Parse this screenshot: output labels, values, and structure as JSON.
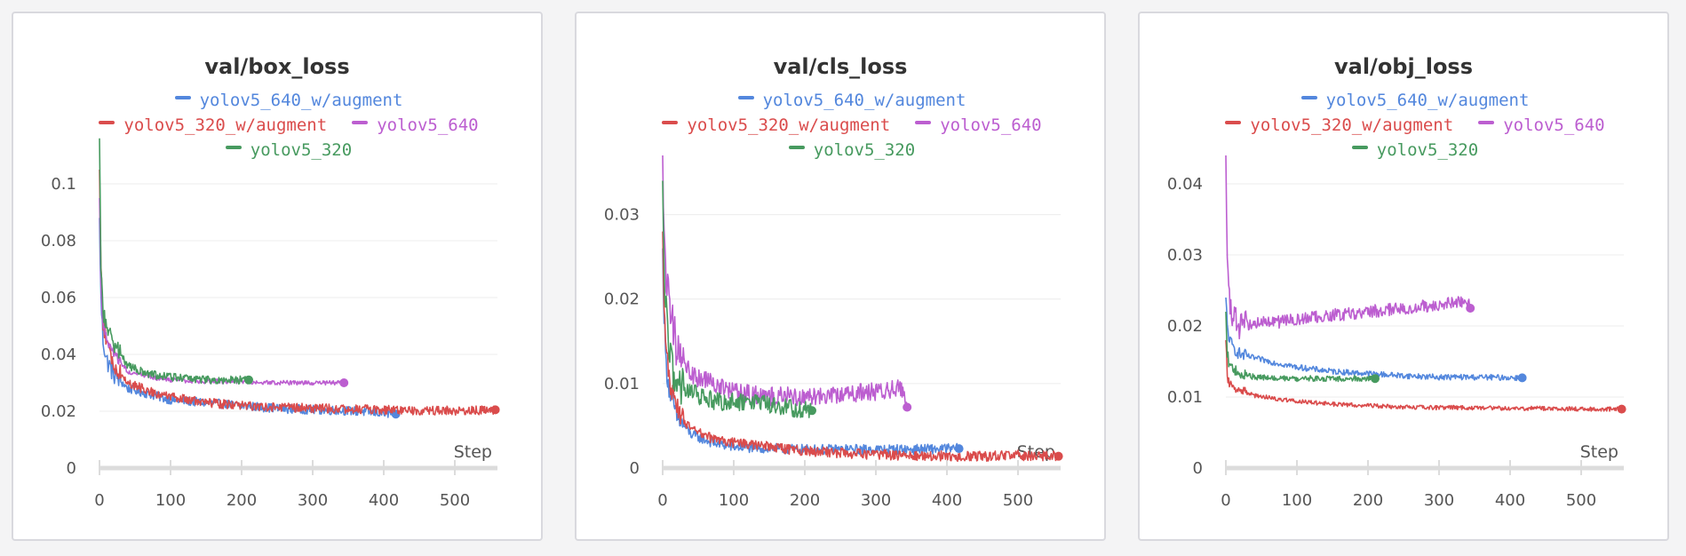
{
  "chart_data": [
    {
      "type": "line",
      "title": "val/box_loss",
      "xlabel": "Step",
      "ylabel": "",
      "xlim": [
        0,
        560
      ],
      "ylim": [
        0,
        0.11
      ],
      "x_ticks": [
        0,
        100,
        200,
        300,
        400,
        500
      ],
      "y_ticks": [
        0,
        0.02,
        0.04,
        0.06,
        0.08,
        0.1
      ],
      "x_tick_labels": [
        "0",
        "100",
        "200",
        "300",
        "400",
        "500"
      ],
      "y_tick_labels": [
        "0",
        "0.02",
        "0.04",
        "0.06",
        "0.08",
        "0.1"
      ],
      "grid": "horizontal",
      "legend": "top-center",
      "series": [
        {
          "name": "yolov5_640_w/augment",
          "color": "#5387dd",
          "noise": 0.0016,
          "x": [
            0,
            2,
            5,
            10,
            20,
            40,
            70,
            100,
            150,
            200,
            250,
            300,
            350,
            417
          ],
          "y": [
            0.088,
            0.06,
            0.045,
            0.038,
            0.033,
            0.028,
            0.026,
            0.024,
            0.023,
            0.022,
            0.021,
            0.0205,
            0.0202,
            0.019
          ]
        },
        {
          "name": "yolov5_320_w/augment",
          "color": "#da4c4c",
          "noise": 0.0016,
          "x": [
            0,
            2,
            5,
            10,
            20,
            40,
            70,
            100,
            150,
            200,
            250,
            300,
            350,
            400,
            450,
            500,
            557
          ],
          "y": [
            0.105,
            0.07,
            0.052,
            0.044,
            0.036,
            0.03,
            0.027,
            0.025,
            0.023,
            0.022,
            0.0215,
            0.021,
            0.0208,
            0.0205,
            0.0203,
            0.0202,
            0.0205
          ]
        },
        {
          "name": "yolov5_640",
          "color": "#bc5ed0",
          "noise": 0.0008,
          "x": [
            0,
            2,
            5,
            10,
            20,
            40,
            70,
            100,
            150,
            200,
            250,
            300,
            344
          ],
          "y": [
            0.095,
            0.065,
            0.05,
            0.045,
            0.04,
            0.034,
            0.032,
            0.031,
            0.0305,
            0.0305,
            0.03,
            0.03,
            0.03
          ]
        },
        {
          "name": "yolov5_320",
          "color": "#479a5f",
          "noise": 0.0014,
          "x": [
            0,
            2,
            5,
            10,
            20,
            40,
            70,
            100,
            150,
            210
          ],
          "y": [
            0.116,
            0.07,
            0.055,
            0.05,
            0.044,
            0.036,
            0.033,
            0.032,
            0.031,
            0.031
          ]
        }
      ]
    },
    {
      "type": "line",
      "title": "val/cls_loss",
      "xlabel": "Step",
      "ylabel": "",
      "xlim": [
        0,
        560
      ],
      "ylim": [
        0,
        0.037
      ],
      "x_ticks": [
        0,
        100,
        200,
        300,
        400,
        500
      ],
      "y_ticks": [
        0,
        0.01,
        0.02,
        0.03
      ],
      "x_tick_labels": [
        "0",
        "100",
        "200",
        "300",
        "400",
        "500"
      ],
      "y_tick_labels": [
        "0",
        "0.01",
        "0.02",
        "0.03"
      ],
      "grid": "horizontal",
      "legend": "top-center",
      "series": [
        {
          "name": "yolov5_640_w/augment",
          "color": "#5387dd",
          "noise": 0.0006,
          "x": [
            0,
            2,
            5,
            10,
            20,
            40,
            70,
            100,
            150,
            200,
            250,
            300,
            350,
            417
          ],
          "y": [
            0.026,
            0.018,
            0.012,
            0.009,
            0.006,
            0.004,
            0.003,
            0.0025,
            0.0023,
            0.0022,
            0.0022,
            0.0022,
            0.0022,
            0.0023
          ]
        },
        {
          "name": "yolov5_320_w/augment",
          "color": "#da4c4c",
          "noise": 0.0006,
          "x": [
            0,
            2,
            5,
            10,
            20,
            40,
            70,
            100,
            150,
            200,
            250,
            300,
            350,
            400,
            450,
            500,
            557
          ],
          "y": [
            0.028,
            0.02,
            0.014,
            0.01,
            0.007,
            0.0045,
            0.0035,
            0.003,
            0.0025,
            0.002,
            0.0018,
            0.0016,
            0.0015,
            0.0014,
            0.0014,
            0.0015,
            0.0014
          ]
        },
        {
          "name": "yolov5_640",
          "color": "#bc5ed0",
          "noise": 0.0011,
          "x": [
            0,
            2,
            5,
            10,
            20,
            40,
            70,
            100,
            150,
            200,
            250,
            300,
            340,
            344
          ],
          "y": [
            0.037,
            0.026,
            0.022,
            0.02,
            0.014,
            0.011,
            0.01,
            0.009,
            0.0085,
            0.0085,
            0.0088,
            0.009,
            0.0095,
            0.0072
          ]
        },
        {
          "name": "yolov5_320",
          "color": "#479a5f",
          "noise": 0.0011,
          "x": [
            0,
            2,
            5,
            10,
            20,
            40,
            70,
            100,
            150,
            210
          ],
          "y": [
            0.034,
            0.022,
            0.018,
            0.013,
            0.01,
            0.009,
            0.008,
            0.0078,
            0.0075,
            0.0068
          ]
        }
      ]
    },
    {
      "type": "line",
      "title": "val/obj_loss",
      "xlabel": "Step",
      "ylabel": "",
      "xlim": [
        0,
        560
      ],
      "ylim": [
        0,
        0.044
      ],
      "x_ticks": [
        0,
        100,
        200,
        300,
        400,
        500
      ],
      "y_ticks": [
        0,
        0.01,
        0.02,
        0.03,
        0.04
      ],
      "x_tick_labels": [
        "0",
        "100",
        "200",
        "300",
        "400",
        "500"
      ],
      "y_tick_labels": [
        "0",
        "0.01",
        "0.02",
        "0.03",
        "0.04"
      ],
      "grid": "horizontal",
      "legend": "top-center",
      "series": [
        {
          "name": "yolov5_640_w/augment",
          "color": "#5387dd",
          "noise": 0.0004,
          "x": [
            0,
            2,
            5,
            10,
            20,
            40,
            70,
            100,
            150,
            200,
            250,
            300,
            350,
            417
          ],
          "y": [
            0.024,
            0.02,
            0.018,
            0.017,
            0.016,
            0.0155,
            0.0148,
            0.0142,
            0.0136,
            0.0133,
            0.013,
            0.0128,
            0.0128,
            0.0127
          ]
        },
        {
          "name": "yolov5_320_w/augment",
          "color": "#da4c4c",
          "noise": 0.0003,
          "x": [
            0,
            2,
            5,
            10,
            20,
            40,
            70,
            100,
            150,
            200,
            250,
            300,
            350,
            400,
            450,
            500,
            557
          ],
          "y": [
            0.018,
            0.013,
            0.012,
            0.0115,
            0.011,
            0.0102,
            0.0098,
            0.0094,
            0.009,
            0.0088,
            0.0086,
            0.0085,
            0.0085,
            0.0084,
            0.0084,
            0.0083,
            0.0083
          ]
        },
        {
          "name": "yolov5_640",
          "color": "#bc5ed0",
          "noise": 0.0009,
          "x": [
            0,
            2,
            5,
            10,
            20,
            40,
            70,
            100,
            150,
            200,
            250,
            300,
            340,
            344
          ],
          "y": [
            0.044,
            0.03,
            0.024,
            0.021,
            0.02,
            0.0205,
            0.0205,
            0.021,
            0.0215,
            0.022,
            0.0225,
            0.023,
            0.0235,
            0.0225
          ]
        },
        {
          "name": "yolov5_320",
          "color": "#479a5f",
          "noise": 0.0004,
          "x": [
            0,
            2,
            5,
            10,
            20,
            40,
            70,
            100,
            150,
            210
          ],
          "y": [
            0.022,
            0.016,
            0.0145,
            0.0138,
            0.0132,
            0.0128,
            0.0126,
            0.0126,
            0.0126,
            0.0126
          ]
        }
      ]
    }
  ]
}
